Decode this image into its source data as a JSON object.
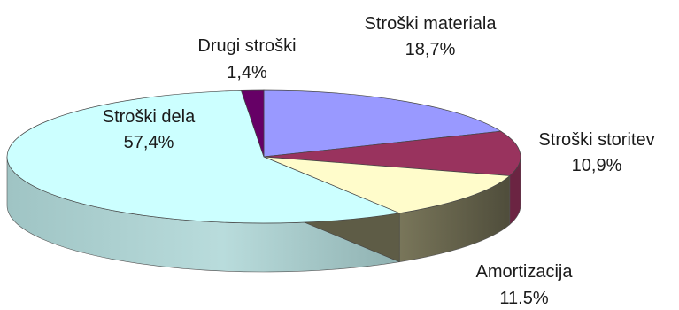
{
  "chart_data": {
    "type": "pie",
    "style": "3d",
    "categories": [
      "Stroški materiala",
      "Stroški storitev",
      "Amortizacija",
      "Stroški dela",
      "Drugi stroški"
    ],
    "values": [
      18.7,
      10.9,
      11.5,
      57.4,
      1.4
    ],
    "value_labels": [
      "18,7%",
      "10,9%",
      "11.5%",
      "57,4%",
      "1,4%"
    ],
    "colors": [
      "#9999ff",
      "#99335e",
      "#fffccb",
      "#ccffff",
      "#660066"
    ],
    "legend": "none"
  }
}
